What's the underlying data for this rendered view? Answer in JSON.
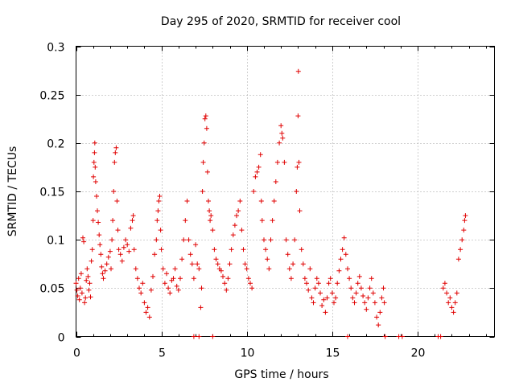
{
  "chart_data": {
    "type": "scatter",
    "title": "Day 295 of 2020, SRMTID for receiver cool",
    "xlabel": "GPS time / hours",
    "ylabel": "SRMTID / TECUs",
    "xlim": [
      0,
      24.5
    ],
    "ylim": [
      0,
      0.3
    ],
    "xticks": [
      0,
      5,
      10,
      15,
      20
    ],
    "yticks": [
      0,
      0.05,
      0.1,
      0.15,
      0.2,
      0.25,
      0.3
    ],
    "xtick_labels": [
      "0",
      "5",
      "10",
      "15",
      "20"
    ],
    "ytick_labels": [
      "0",
      "0.05",
      "0.1",
      "0.15",
      "0.2",
      "0.25",
      "0.3"
    ],
    "grid": true,
    "marker": "plus",
    "marker_color": "#e00000",
    "series": [
      {
        "name": "SRMTID",
        "points": [
          [
            0.0,
            0.055
          ],
          [
            0.05,
            0.048
          ],
          [
            0.1,
            0.042
          ],
          [
            0.15,
            0.06
          ],
          [
            0.2,
            0.038
          ],
          [
            0.25,
            0.05
          ],
          [
            0.3,
            0.065
          ],
          [
            0.35,
            0.045
          ],
          [
            0.4,
            0.102
          ],
          [
            0.45,
            0.098
          ],
          [
            0.5,
            0.035
          ],
          [
            0.55,
            0.04
          ],
          [
            0.6,
            0.058
          ],
          [
            0.65,
            0.07
          ],
          [
            0.7,
            0.062
          ],
          [
            0.75,
            0.048
          ],
          [
            0.8,
            0.055
          ],
          [
            0.85,
            0.041
          ],
          [
            0.9,
            0.078
          ],
          [
            0.95,
            0.09
          ],
          [
            1.0,
            0.12
          ],
          [
            1.02,
            0.165
          ],
          [
            1.05,
            0.18
          ],
          [
            1.08,
            0.19
          ],
          [
            1.1,
            0.2
          ],
          [
            1.12,
            0.175
          ],
          [
            1.15,
            0.16
          ],
          [
            1.2,
            0.145
          ],
          [
            1.25,
            0.13
          ],
          [
            1.3,
            0.118
          ],
          [
            1.35,
            0.105
          ],
          [
            1.4,
            0.095
          ],
          [
            1.45,
            0.085
          ],
          [
            1.5,
            0.072
          ],
          [
            1.55,
            0.065
          ],
          [
            1.6,
            0.06
          ],
          [
            1.7,
            0.068
          ],
          [
            1.8,
            0.075
          ],
          [
            1.9,
            0.082
          ],
          [
            2.0,
            0.088
          ],
          [
            2.05,
            0.07
          ],
          [
            2.1,
            0.1
          ],
          [
            2.15,
            0.12
          ],
          [
            2.2,
            0.15
          ],
          [
            2.25,
            0.18
          ],
          [
            2.3,
            0.19
          ],
          [
            2.35,
            0.195
          ],
          [
            2.4,
            0.14
          ],
          [
            2.45,
            0.11
          ],
          [
            2.5,
            0.09
          ],
          [
            2.6,
            0.085
          ],
          [
            2.7,
            0.078
          ],
          [
            2.8,
            0.092
          ],
          [
            2.9,
            0.1
          ],
          [
            3.0,
            0.095
          ],
          [
            3.1,
            0.088
          ],
          [
            3.2,
            0.112
          ],
          [
            3.3,
            0.12
          ],
          [
            3.35,
            0.125
          ],
          [
            3.4,
            0.09
          ],
          [
            3.5,
            0.07
          ],
          [
            3.6,
            0.06
          ],
          [
            3.7,
            0.05
          ],
          [
            3.8,
            0.045
          ],
          [
            3.9,
            0.055
          ],
          [
            4.0,
            0.035
          ],
          [
            4.1,
            0.025
          ],
          [
            4.2,
            0.03
          ],
          [
            4.3,
            0.02
          ],
          [
            4.4,
            0.048
          ],
          [
            4.5,
            0.062
          ],
          [
            4.6,
            0.085
          ],
          [
            4.7,
            0.1
          ],
          [
            4.75,
            0.12
          ],
          [
            4.8,
            0.13
          ],
          [
            4.85,
            0.14
          ],
          [
            4.9,
            0.145
          ],
          [
            4.95,
            0.11
          ],
          [
            5.0,
            0.09
          ],
          [
            5.1,
            0.07
          ],
          [
            5.2,
            0.055
          ],
          [
            5.3,
            0.065
          ],
          [
            5.4,
            0.05
          ],
          [
            5.5,
            0.045
          ],
          [
            5.6,
            0.058
          ],
          [
            5.7,
            0.06
          ],
          [
            5.8,
            0.07
          ],
          [
            5.9,
            0.052
          ],
          [
            6.0,
            0.048
          ],
          [
            6.1,
            0.06
          ],
          [
            6.2,
            0.08
          ],
          [
            6.3,
            0.1
          ],
          [
            6.4,
            0.12
          ],
          [
            6.5,
            0.14
          ],
          [
            6.6,
            0.1
          ],
          [
            6.7,
            0.085
          ],
          [
            6.8,
            0.075
          ],
          [
            6.9,
            0.06
          ],
          [
            7.0,
            0.095
          ],
          [
            7.1,
            0.075
          ],
          [
            7.2,
            0.07
          ],
          [
            7.3,
            0.03
          ],
          [
            7.35,
            0.05
          ],
          [
            7.4,
            0.15
          ],
          [
            7.45,
            0.18
          ],
          [
            7.5,
            0.2
          ],
          [
            7.55,
            0.225
          ],
          [
            7.6,
            0.228
          ],
          [
            7.65,
            0.215
          ],
          [
            7.7,
            0.17
          ],
          [
            7.75,
            0.14
          ],
          [
            7.8,
            0.13
          ],
          [
            7.85,
            0.12
          ],
          [
            7.9,
            0.125
          ],
          [
            8.0,
            0.11
          ],
          [
            8.1,
            0.09
          ],
          [
            8.2,
            0.08
          ],
          [
            8.3,
            0.075
          ],
          [
            8.4,
            0.07
          ],
          [
            8.5,
            0.068
          ],
          [
            8.6,
            0.062
          ],
          [
            8.7,
            0.055
          ],
          [
            8.8,
            0.048
          ],
          [
            8.9,
            0.06
          ],
          [
            9.0,
            0.075
          ],
          [
            9.1,
            0.09
          ],
          [
            9.2,
            0.105
          ],
          [
            9.3,
            0.115
          ],
          [
            9.4,
            0.125
          ],
          [
            9.5,
            0.13
          ],
          [
            9.6,
            0.14
          ],
          [
            9.7,
            0.11
          ],
          [
            9.8,
            0.09
          ],
          [
            9.9,
            0.075
          ],
          [
            10.0,
            0.07
          ],
          [
            10.1,
            0.06
          ],
          [
            10.2,
            0.055
          ],
          [
            10.3,
            0.05
          ],
          [
            10.4,
            0.15
          ],
          [
            10.5,
            0.165
          ],
          [
            10.6,
            0.17
          ],
          [
            10.7,
            0.175
          ],
          [
            10.8,
            0.188
          ],
          [
            10.85,
            0.14
          ],
          [
            10.9,
            0.12
          ],
          [
            11.0,
            0.1
          ],
          [
            11.1,
            0.09
          ],
          [
            11.2,
            0.08
          ],
          [
            11.3,
            0.07
          ],
          [
            11.4,
            0.1
          ],
          [
            11.5,
            0.12
          ],
          [
            11.6,
            0.14
          ],
          [
            11.7,
            0.16
          ],
          [
            11.8,
            0.18
          ],
          [
            11.9,
            0.2
          ],
          [
            12.0,
            0.218
          ],
          [
            12.05,
            0.21
          ],
          [
            12.1,
            0.205
          ],
          [
            12.2,
            0.18
          ],
          [
            12.3,
            0.1
          ],
          [
            12.4,
            0.085
          ],
          [
            12.5,
            0.07
          ],
          [
            12.6,
            0.06
          ],
          [
            12.7,
            0.075
          ],
          [
            12.8,
            0.1
          ],
          [
            12.9,
            0.15
          ],
          [
            12.95,
            0.175
          ],
          [
            13.0,
            0.228
          ],
          [
            13.02,
            0.274
          ],
          [
            13.05,
            0.18
          ],
          [
            13.1,
            0.13
          ],
          [
            13.2,
            0.09
          ],
          [
            13.3,
            0.075
          ],
          [
            13.4,
            0.06
          ],
          [
            13.5,
            0.055
          ],
          [
            13.6,
            0.048
          ],
          [
            13.7,
            0.07
          ],
          [
            13.8,
            0.04
          ],
          [
            13.9,
            0.035
          ],
          [
            14.0,
            0.05
          ],
          [
            14.1,
            0.06
          ],
          [
            14.2,
            0.055
          ],
          [
            14.3,
            0.045
          ],
          [
            14.4,
            0.032
          ],
          [
            14.5,
            0.038
          ],
          [
            14.6,
            0.025
          ],
          [
            14.7,
            0.04
          ],
          [
            14.8,
            0.055
          ],
          [
            14.9,
            0.06
          ],
          [
            15.0,
            0.045
          ],
          [
            15.1,
            0.035
          ],
          [
            15.2,
            0.04
          ],
          [
            15.3,
            0.055
          ],
          [
            15.4,
            0.068
          ],
          [
            15.5,
            0.08
          ],
          [
            15.6,
            0.09
          ],
          [
            15.7,
            0.102
          ],
          [
            15.8,
            0.085
          ],
          [
            15.9,
            0.07
          ],
          [
            16.0,
            0.06
          ],
          [
            16.1,
            0.05
          ],
          [
            16.2,
            0.04
          ],
          [
            16.3,
            0.035
          ],
          [
            16.4,
            0.045
          ],
          [
            16.5,
            0.055
          ],
          [
            16.6,
            0.062
          ],
          [
            16.7,
            0.05
          ],
          [
            16.8,
            0.042
          ],
          [
            16.9,
            0.035
          ],
          [
            17.0,
            0.028
          ],
          [
            17.1,
            0.04
          ],
          [
            17.2,
            0.05
          ],
          [
            17.3,
            0.06
          ],
          [
            17.4,
            0.045
          ],
          [
            17.5,
            0.035
          ],
          [
            17.6,
            0.02
          ],
          [
            17.7,
            0.012
          ],
          [
            17.8,
            0.025
          ],
          [
            17.9,
            0.04
          ],
          [
            18.0,
            0.05
          ],
          [
            18.05,
            0.035
          ],
          [
            21.5,
            0.05
          ],
          [
            21.6,
            0.055
          ],
          [
            21.7,
            0.045
          ],
          [
            21.8,
            0.035
          ],
          [
            21.9,
            0.04
          ],
          [
            22.0,
            0.03
          ],
          [
            22.1,
            0.025
          ],
          [
            22.2,
            0.035
          ],
          [
            22.3,
            0.045
          ],
          [
            22.4,
            0.08
          ],
          [
            22.5,
            0.09
          ],
          [
            22.6,
            0.1
          ],
          [
            22.7,
            0.11
          ],
          [
            22.75,
            0.12
          ],
          [
            22.8,
            0.125
          ],
          [
            6.9,
            0.0
          ],
          [
            7.2,
            0.0
          ],
          [
            8.0,
            0.0
          ],
          [
            15.9,
            0.0
          ],
          [
            18.1,
            0.0
          ],
          [
            18.9,
            0.0
          ],
          [
            19.1,
            0.0
          ],
          [
            21.2,
            0.0
          ],
          [
            21.35,
            0.0
          ]
        ]
      }
    ]
  }
}
